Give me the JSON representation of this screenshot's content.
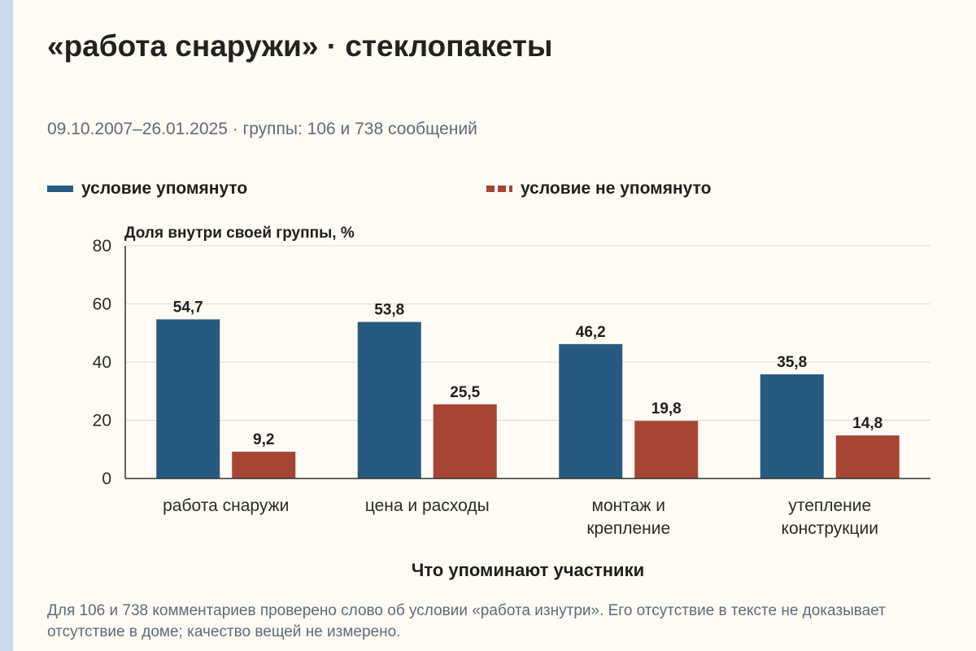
{
  "title": "«работа снаружи» · стеклопакеты",
  "subtitle": "09.10.2007–26.01.2025 · группы: 106 и 738 сообщений",
  "note": "Для 106 и 738 комментариев проверено слово об условии «работа изнутри». Его отсутствие в тексте не доказывает отсутствие в доме; качество вещей не измерено.",
  "colors": {
    "series_0": "#275a80",
    "series_1": "#a64533",
    "grid": "#d9d9d9",
    "axis": "#333333"
  },
  "chart_data": {
    "type": "bar",
    "categories": [
      [
        "работа снаружи"
      ],
      [
        "цена и расходы"
      ],
      [
        "монтаж и",
        "крепление"
      ],
      [
        "утепление",
        "конструкции"
      ]
    ],
    "series": [
      {
        "name": "условие упомянуто",
        "values": [
          54.7,
          53.8,
          46.2,
          35.8
        ],
        "value_labels": [
          "54,7",
          "53,8",
          "46,2",
          "35,8"
        ]
      },
      {
        "name": "условие не упомянуто",
        "values": [
          9.2,
          25.5,
          19.8,
          14.8
        ],
        "value_labels": [
          "9,2",
          "25,5",
          "19,8",
          "14,8"
        ]
      }
    ],
    "ylabel": "Доля внутри своей группы, %",
    "xlabel": "Что упоминают участники",
    "ylim": [
      0,
      80
    ],
    "yticks": [
      0,
      20,
      40,
      60,
      80
    ],
    "grid": true,
    "legend_position": "top"
  }
}
